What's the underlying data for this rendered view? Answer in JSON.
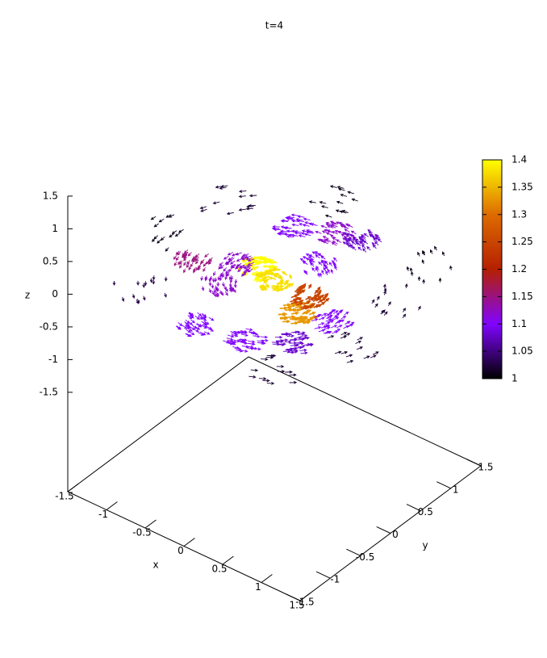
{
  "chart_data": {
    "type": "vector3d",
    "title": "t=4",
    "xlabel": "x",
    "ylabel": "y",
    "zlabel": "z",
    "xlim": [
      -1.5,
      1.5
    ],
    "ylim": [
      -1.5,
      1.5
    ],
    "zlim": [
      -1.5,
      1.5
    ],
    "xticks": [
      -1.5,
      -1,
      -0.5,
      0,
      0.5,
      1,
      1.5
    ],
    "yticks": [
      -1.5,
      -1,
      -0.5,
      0,
      0.5,
      1,
      1.5
    ],
    "zticks": [
      -1.5,
      -1,
      -0.5,
      0,
      0.5,
      1,
      1.5
    ],
    "cblim": [
      1,
      1.4
    ],
    "cbticks": [
      1,
      1.05,
      1.1,
      1.15,
      1.2,
      1.25,
      1.3,
      1.35,
      1.4
    ],
    "palette": [
      "#000000",
      "#8004ff",
      "#b52000",
      "#dd6b00",
      "#ffff00"
    ],
    "x": [
      -0.26,
      0.0,
      0.5,
      0.46,
      -0.88,
      -0.43,
      -0.39,
      0.01,
      0.29,
      -0.19,
      0.36,
      0.79,
      0.89,
      -0.49,
      0.2,
      -1.2,
      1.2,
      -1.0,
      1.1,
      -0.3,
      0.9,
      -1.4,
      1.3
    ],
    "y": [
      0.11,
      0.02,
      -0.31,
      -0.02,
      -0.21,
      -0.38,
      0.9,
      1.05,
      1.1,
      -1.09,
      -1.0,
      -0.75,
      -0.21,
      0.02,
      0.5,
      0.8,
      0.5,
      -0.9,
      1.2,
      1.5,
      -1.3,
      0,
      -0.5
    ],
    "z": [
      0,
      0,
      0,
      0,
      0,
      0,
      0,
      0,
      0,
      0,
      0,
      0,
      0,
      0,
      0,
      0,
      0,
      0,
      0,
      0,
      0,
      0,
      0
    ],
    "values": [
      1.4,
      1.38,
      1.33,
      1.25,
      1.15,
      1.12,
      1.1,
      1.12,
      1.08,
      1.1,
      1.1,
      1.08,
      1.1,
      1.12,
      1.1,
      1.02,
      1.02,
      1.03,
      1.01,
      1.01,
      1.02,
      1.01,
      1.02
    ]
  }
}
